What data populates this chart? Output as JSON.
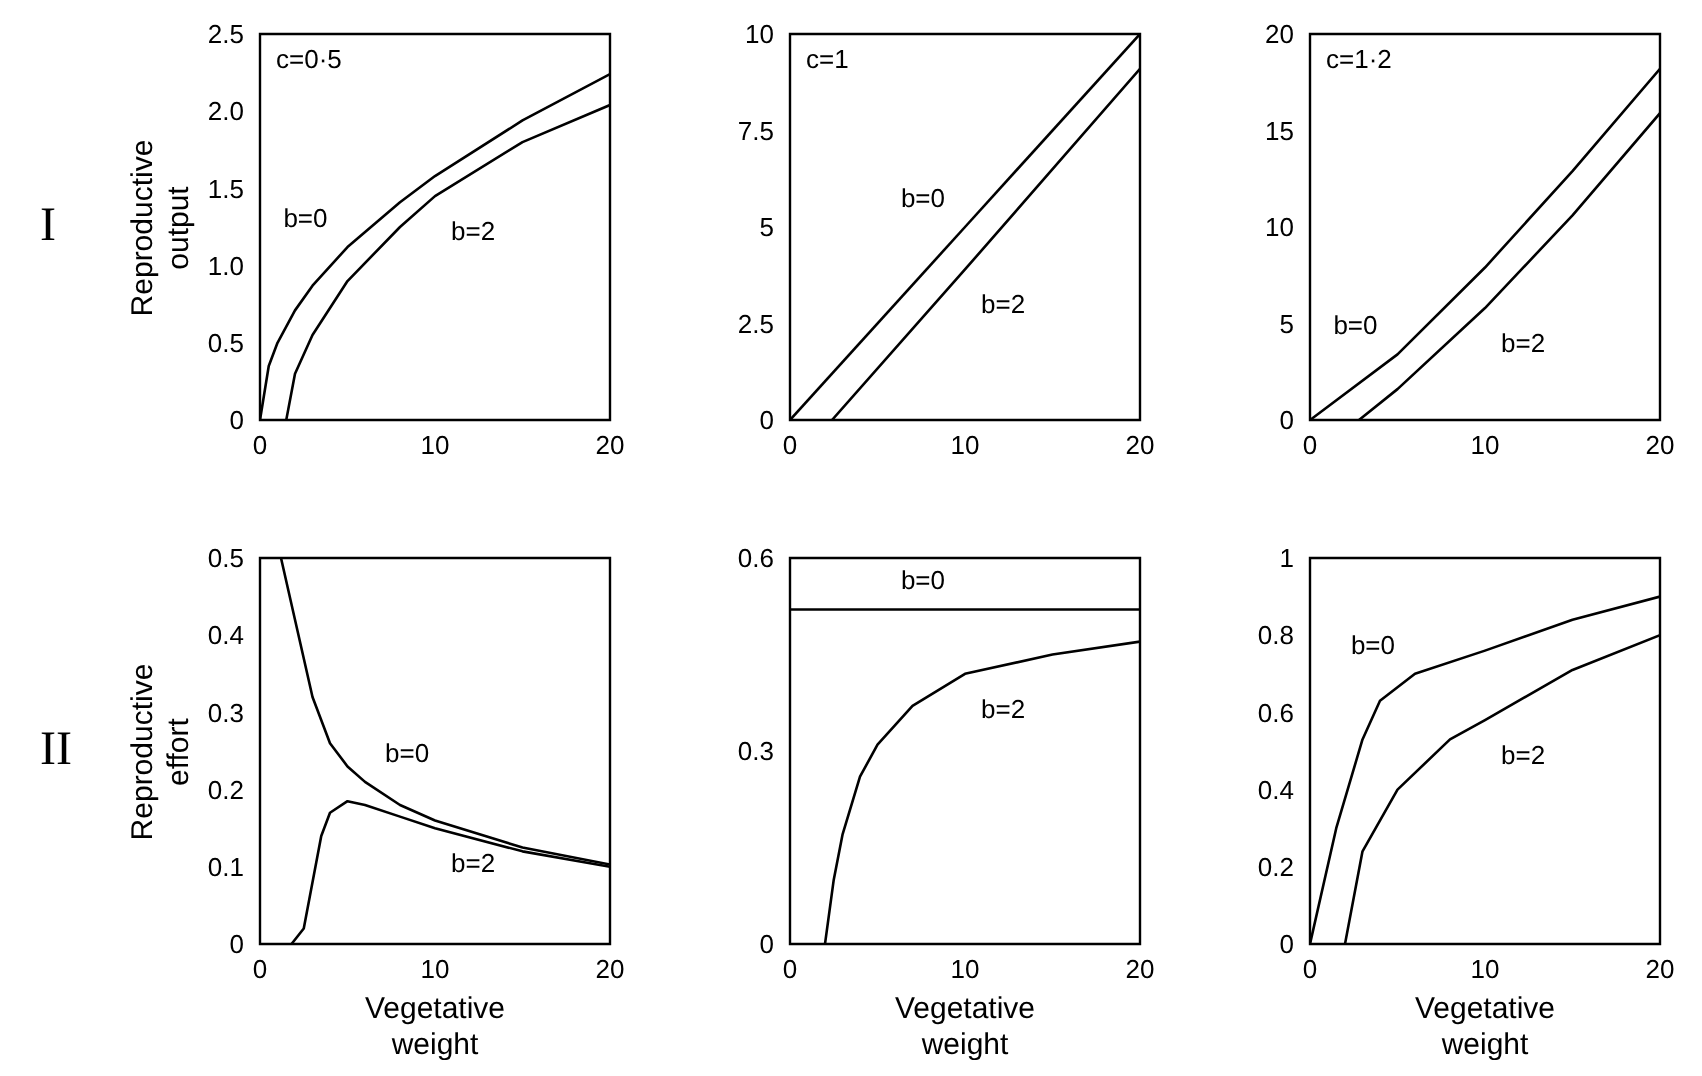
{
  "chart_data": [
    {
      "type": "line",
      "ylabel": "Reproductive output",
      "annotations": [
        "c=0·5",
        "I"
      ],
      "xlim": [
        0,
        20
      ],
      "xticks": [
        0,
        10,
        20
      ],
      "ylim": [
        0,
        2.5
      ],
      "yticks": [
        0,
        0.5,
        {
          "value": 1,
          "label": "1.0"
        },
        1.5,
        {
          "value": 2,
          "label": "2.0"
        },
        2.5
      ],
      "grid": false,
      "legend": false,
      "marker": "none",
      "line_style": "solid",
      "series": [
        {
          "name": "b=0",
          "color": "#000000",
          "x": [
            0,
            0.5,
            1,
            2,
            3,
            5,
            8,
            10,
            15,
            20
          ],
          "values": [
            0,
            0.35,
            0.5,
            0.71,
            0.87,
            1.12,
            1.41,
            1.58,
            1.94,
            2.24
          ]
        },
        {
          "name": "b=2",
          "color": "#000000",
          "x": [
            1.5,
            2,
            3,
            5,
            8,
            10,
            15,
            20
          ],
          "values": [
            0,
            0.3,
            0.55,
            0.9,
            1.25,
            1.45,
            1.8,
            2.04
          ]
        }
      ]
    },
    {
      "type": "line",
      "annotations": [
        "c=1"
      ],
      "xlim": [
        0,
        20
      ],
      "xticks": [
        0,
        10,
        20
      ],
      "ylim": [
        0,
        10
      ],
      "yticks": [
        0,
        2.5,
        5,
        7.5,
        10
      ],
      "grid": false,
      "legend": false,
      "marker": "none",
      "line_style": "solid",
      "series": [
        {
          "name": "b=0",
          "color": "#000000",
          "x": [
            0,
            10,
            20
          ],
          "values": [
            0,
            5,
            10
          ]
        },
        {
          "name": "b=2",
          "color": "#000000",
          "x": [
            2.4,
            10,
            20
          ],
          "values": [
            0,
            3.9,
            9.1
          ]
        }
      ]
    },
    {
      "type": "line",
      "annotations": [
        "c=1·2"
      ],
      "xlim": [
        0,
        20
      ],
      "xticks": [
        0,
        10,
        20
      ],
      "ylim": [
        0,
        20
      ],
      "yticks": [
        0,
        5,
        10,
        15,
        20
      ],
      "grid": false,
      "legend": false,
      "marker": "none",
      "line_style": "solid",
      "series": [
        {
          "name": "b=0",
          "color": "#000000",
          "x": [
            0,
            5,
            10,
            15,
            20
          ],
          "values": [
            0,
            3.4,
            7.9,
            12.9,
            18.2
          ]
        },
        {
          "name": "b=2",
          "color": "#000000",
          "x": [
            2.8,
            5,
            10,
            15,
            20
          ],
          "values": [
            0,
            1.6,
            5.8,
            10.6,
            15.9
          ]
        }
      ]
    },
    {
      "type": "line",
      "ylabel": "Reproductive effort",
      "xlabel": "Vegetative weight",
      "annotations": [
        "II"
      ],
      "xlim": [
        0,
        20
      ],
      "xticks": [
        0,
        10,
        20
      ],
      "ylim": [
        0,
        0.5
      ],
      "yticks": [
        0,
        0.1,
        0.2,
        0.3,
        0.4,
        0.5
      ],
      "grid": false,
      "legend": false,
      "marker": "none",
      "line_style": "solid",
      "series": [
        {
          "name": "b=0",
          "color": "#000000",
          "x": [
            1.2,
            2,
            3,
            4,
            5,
            6,
            8,
            10,
            15,
            20
          ],
          "values": [
            0.5,
            0.42,
            0.32,
            0.26,
            0.23,
            0.21,
            0.18,
            0.16,
            0.125,
            0.103
          ]
        },
        {
          "name": "b=2",
          "color": "#000000",
          "x": [
            1.8,
            2.5,
            3,
            3.5,
            4,
            5,
            6,
            8,
            10,
            15,
            20
          ],
          "values": [
            0,
            0.02,
            0.08,
            0.14,
            0.17,
            0.185,
            0.18,
            0.165,
            0.15,
            0.12,
            0.1
          ]
        }
      ]
    },
    {
      "type": "line",
      "xlabel": "Vegetative weight",
      "xlim": [
        0,
        20
      ],
      "xticks": [
        0,
        10,
        20
      ],
      "ylim": [
        0,
        0.6
      ],
      "yticks": [
        0,
        0.3,
        0.6
      ],
      "grid": false,
      "legend": false,
      "marker": "none",
      "line_style": "solid",
      "series": [
        {
          "name": "b=0",
          "color": "#000000",
          "x": [
            0,
            10,
            20
          ],
          "values": [
            0.52,
            0.52,
            0.52
          ]
        },
        {
          "name": "b=2",
          "color": "#000000",
          "x": [
            2,
            2.5,
            3,
            4,
            5,
            7,
            10,
            15,
            20
          ],
          "values": [
            0,
            0.1,
            0.17,
            0.26,
            0.31,
            0.37,
            0.42,
            0.45,
            0.47
          ]
        }
      ]
    },
    {
      "type": "line",
      "xlabel": "Vegetative weight",
      "xlim": [
        0,
        20
      ],
      "xticks": [
        0,
        10,
        20
      ],
      "ylim": [
        0,
        1
      ],
      "yticks": [
        0,
        0.2,
        0.4,
        0.6,
        0.8,
        1
      ],
      "grid": false,
      "legend": false,
      "marker": "none",
      "line_style": "solid",
      "series": [
        {
          "name": "b=0",
          "color": "#000000",
          "x": [
            0,
            1.5,
            3,
            4,
            6,
            10,
            15,
            20
          ],
          "values": [
            0,
            0.3,
            0.53,
            0.63,
            0.7,
            0.76,
            0.84,
            0.9
          ]
        },
        {
          "name": "b=2",
          "color": "#000000",
          "x": [
            2,
            3,
            5,
            8,
            10,
            15,
            20
          ],
          "values": [
            0,
            0.24,
            0.4,
            0.53,
            0.58,
            0.71,
            0.8
          ]
        }
      ]
    }
  ]
}
